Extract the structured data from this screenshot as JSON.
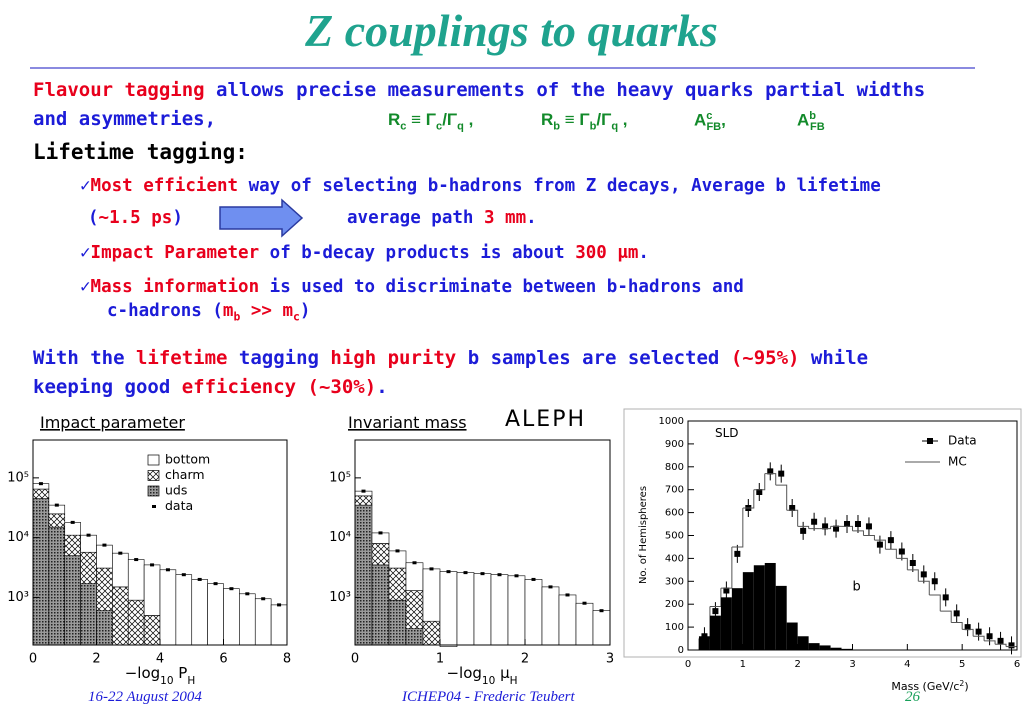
{
  "slide": {
    "title": "Z couplings to quarks",
    "intro": [
      [
        "Flavour tagging",
        " allows precise measurements of the heavy quarks partial widths"
      ],
      [
        "and asymmetries,"
      ]
    ],
    "formulas": [
      [
        "R",
        "c",
        " ≡ Γ",
        "c",
        "/Γ",
        "q",
        " ,"
      ],
      [
        "R",
        "b",
        " ≡ Γ",
        "b",
        "/Γ",
        "q",
        " ,"
      ],
      [
        "A",
        "c",
        "FB",
        ","
      ],
      [
        "A",
        "b",
        "FB"
      ]
    ],
    "heading": "Lifetime tagging:",
    "check": "✓",
    "bullets": [
      [
        [
          "Most efficient",
          " way of selecting b-hadrons from Z decays, Average b lifetime"
        ],
        [
          "(",
          "~1.5 ps",
          ")"
        ],
        [
          "average path ",
          "3 mm",
          "."
        ]
      ],
      [
        [
          "Impact Parameter",
          " of b-decay products is about ",
          "300 μm",
          "."
        ]
      ],
      [
        [
          "Mass information",
          " is used to discriminate between b-hadrons and"
        ],
        [
          "c-hadrons (",
          "m",
          "b",
          " >> ",
          "m",
          "c",
          ")"
        ]
      ]
    ],
    "summary": [
      [
        "With the ",
        "lifetime",
        " tagging ",
        "high purity",
        " b samples are selected ",
        "(~95%)",
        " while"
      ],
      [
        "keeping good ",
        "efficiency",
        " (~30%)",
        "."
      ]
    ],
    "footer": {
      "date": "16-22 August 2004",
      "conference": "ICHEP04 - Frederic Teubert",
      "page": "26"
    }
  },
  "chart_data": [
    {
      "type": "histogram",
      "title": "Impact parameter",
      "annotation": "ALEPH",
      "xlabel": [
        "−log",
        "10",
        " P",
        "H"
      ],
      "xlim": [
        0,
        8
      ],
      "xticks": [
        0,
        2,
        4,
        6,
        8
      ],
      "ylim": [
        160,
        430000
      ],
      "log_y": true,
      "yticks": [
        {
          "value": 1000,
          "label": "10³"
        },
        {
          "value": 10000,
          "label": "10⁴"
        },
        {
          "value": 100000,
          "label": "10⁵"
        }
      ],
      "bins": [
        0,
        0.5,
        1,
        1.5,
        2,
        2.5,
        3,
        3.5,
        4,
        4.5,
        5,
        5.5,
        6,
        6.5,
        7,
        7.5,
        8
      ],
      "legend": true,
      "series": [
        {
          "name": "bottom",
          "style": "stack",
          "fill": "white",
          "values": [
            15000,
            10000,
            7000,
            5300,
            4400,
            4000,
            3400,
            3000,
            2900,
            2400,
            2000,
            1700,
            1400,
            1150,
            950,
            750
          ]
        },
        {
          "name": "charm",
          "style": "stack",
          "fill": "crosshatch",
          "values": [
            20000,
            10000,
            6000,
            4000,
            2500,
            1500,
            900,
            500,
            0,
            0,
            0,
            0,
            0,
            0,
            0,
            0
          ]
        },
        {
          "name": "uds",
          "style": "stack",
          "fill": "dots",
          "values": [
            45000,
            15000,
            5000,
            1700,
            600,
            0,
            0,
            0,
            0,
            0,
            0,
            0,
            0,
            0,
            0,
            0
          ]
        },
        {
          "name": "data",
          "style": "points",
          "color": "#000000",
          "values": [
            80000,
            35000,
            18000,
            11000,
            7500,
            5500,
            4300,
            3500,
            2900,
            2400,
            2000,
            1700,
            1400,
            1150,
            950,
            750
          ]
        }
      ]
    },
    {
      "type": "histogram",
      "title": "Invariant mass",
      "xlabel": [
        "−log",
        "10",
        " μ",
        "H"
      ],
      "xlim": [
        0,
        3
      ],
      "xticks": [
        0,
        1,
        2,
        3
      ],
      "ylim": [
        160,
        430000
      ],
      "log_y": true,
      "yticks": [
        {
          "value": 1000,
          "label": "10³"
        },
        {
          "value": 10000,
          "label": "10⁴"
        },
        {
          "value": 100000,
          "label": "10⁵"
        }
      ],
      "bins": [
        0,
        0.2,
        0.4,
        0.6,
        0.8,
        1,
        1.2,
        1.4,
        1.6,
        1.8,
        2,
        2.2,
        2.4,
        2.6,
        2.8,
        3
      ],
      "legend": false,
      "series": [
        {
          "style": "stack",
          "fill": "white",
          "values": [
            10000,
            4000,
            2900,
            2500,
            2600,
            2550,
            2600,
            2500,
            2400,
            2300,
            2000,
            1500,
            1100,
            800,
            600
          ]
        },
        {
          "style": "stack",
          "fill": "crosshatch",
          "values": [
            15000,
            4500,
            2200,
            1000,
            400,
            150,
            0,
            0,
            0,
            0,
            0,
            0,
            0,
            0,
            0
          ]
        },
        {
          "style": "stack",
          "fill": "dots",
          "values": [
            35000,
            3500,
            900,
            300,
            0,
            0,
            0,
            0,
            0,
            0,
            0,
            0,
            0,
            0,
            0
          ]
        },
        {
          "style": "points",
          "color": "#000000",
          "values": [
            60000,
            12000,
            6000,
            3800,
            3000,
            2700,
            2600,
            2500,
            2400,
            2300,
            2000,
            1500,
            1100,
            800,
            600
          ]
        }
      ]
    },
    {
      "type": "histogram",
      "annotation": "SLD",
      "xlabel": [
        "Mass (GeV/c",
        "2",
        ")"
      ],
      "ylabel": "No. of Hemispheres",
      "xlim": [
        0,
        6
      ],
      "xticks": [
        0,
        1,
        2,
        3,
        4,
        5,
        6
      ],
      "ylim": [
        0,
        1000
      ],
      "log_y": false,
      "yticks": [
        0,
        100,
        200,
        300,
        400,
        500,
        600,
        700,
        800,
        900,
        1000
      ],
      "bins": [
        0,
        0.2,
        0.4,
        0.6,
        0.8,
        1,
        1.2,
        1.4,
        1.6,
        1.8,
        2,
        2.2,
        2.4,
        2.6,
        2.8,
        3,
        3.2,
        3.4,
        3.6,
        3.8,
        4,
        4.2,
        4.4,
        4.6,
        4.8,
        5,
        5.2,
        5.4,
        5.6,
        5.8,
        6
      ],
      "legend": true,
      "series": [
        {
          "name": "Data",
          "style": "errorpoints",
          "color": "#000000",
          "values": [
            null,
            60,
            170,
            260,
            420,
            620,
            690,
            780,
            770,
            620,
            520,
            560,
            540,
            530,
            550,
            550,
            540,
            460,
            480,
            430,
            380,
            330,
            300,
            230,
            160,
            100,
            80,
            60,
            40,
            20
          ]
        },
        {
          "name": "MC",
          "style": "step",
          "color": "#555555",
          "values": [
            0,
            50,
            190,
            270,
            450,
            620,
            700,
            770,
            720,
            610,
            540,
            530,
            530,
            540,
            540,
            520,
            500,
            480,
            440,
            400,
            350,
            300,
            240,
            170,
            120,
            90,
            60,
            40,
            25,
            15
          ]
        },
        {
          "name": "b",
          "style": "bars",
          "color": "#000000",
          "values": [
            0,
            60,
            150,
            230,
            270,
            340,
            370,
            380,
            280,
            120,
            60,
            30,
            20,
            10,
            5,
            0,
            0,
            0,
            0,
            0,
            0,
            0,
            0,
            0,
            0,
            0,
            0,
            0,
            0,
            0
          ]
        }
      ]
    }
  ]
}
